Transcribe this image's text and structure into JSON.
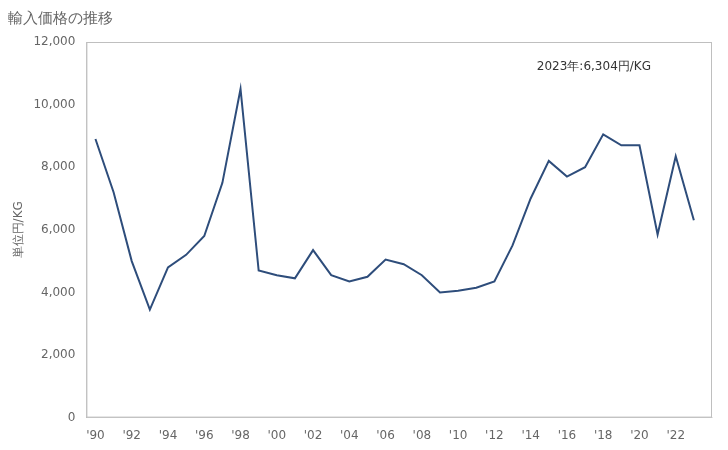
{
  "chart_data": {
    "type": "line",
    "title": "輸入価格の推移",
    "ylabel": "単位円/KG",
    "annotation": "2023年:6,304円/KG",
    "color": "#2e4d7b",
    "x": [
      1990,
      1991,
      1992,
      1993,
      1994,
      1995,
      1996,
      1997,
      1998,
      1999,
      2000,
      2001,
      2002,
      2003,
      2004,
      2005,
      2006,
      2007,
      2008,
      2009,
      2010,
      2011,
      2012,
      2013,
      2014,
      2015,
      2016,
      2017,
      2018,
      2019,
      2020,
      2021,
      2022,
      2023
    ],
    "values": [
      8900,
      7200,
      5000,
      3450,
      4800,
      5200,
      5800,
      7500,
      10500,
      4700,
      4550,
      4450,
      5350,
      4550,
      4350,
      4500,
      5050,
      4900,
      4550,
      4000,
      4050,
      4150,
      4350,
      5500,
      7000,
      8200,
      7700,
      8000,
      9050,
      8700,
      8700,
      5850,
      8350,
      6304
    ],
    "xlim": [
      1989.5,
      2024.0
    ],
    "xticks": [
      {
        "value": 1990,
        "label": "'90"
      },
      {
        "value": 1992,
        "label": "'92"
      },
      {
        "value": 1994,
        "label": "'94"
      },
      {
        "value": 1996,
        "label": "'96"
      },
      {
        "value": 1998,
        "label": "'98"
      },
      {
        "value": 2000,
        "label": "'00"
      },
      {
        "value": 2002,
        "label": "'02"
      },
      {
        "value": 2004,
        "label": "'04"
      },
      {
        "value": 2006,
        "label": "'06"
      },
      {
        "value": 2008,
        "label": "'08"
      },
      {
        "value": 2010,
        "label": "'10"
      },
      {
        "value": 2012,
        "label": "'12"
      },
      {
        "value": 2014,
        "label": "'14"
      },
      {
        "value": 2016,
        "label": "'16"
      },
      {
        "value": 2018,
        "label": "'18"
      },
      {
        "value": 2020,
        "label": "'20"
      },
      {
        "value": 2022,
        "label": "'22"
      }
    ],
    "ylim": [
      0,
      12000
    ],
    "yticks": [
      0,
      {
        "value": 2000,
        "label": "2,000"
      },
      {
        "value": 4000,
        "label": "4,000"
      },
      {
        "value": 6000,
        "label": "6,000"
      },
      {
        "value": 8000,
        "label": "8,000"
      },
      {
        "value": 10000,
        "label": "10,000"
      },
      {
        "value": 12000,
        "label": "12,000"
      }
    ],
    "grid": false
  }
}
